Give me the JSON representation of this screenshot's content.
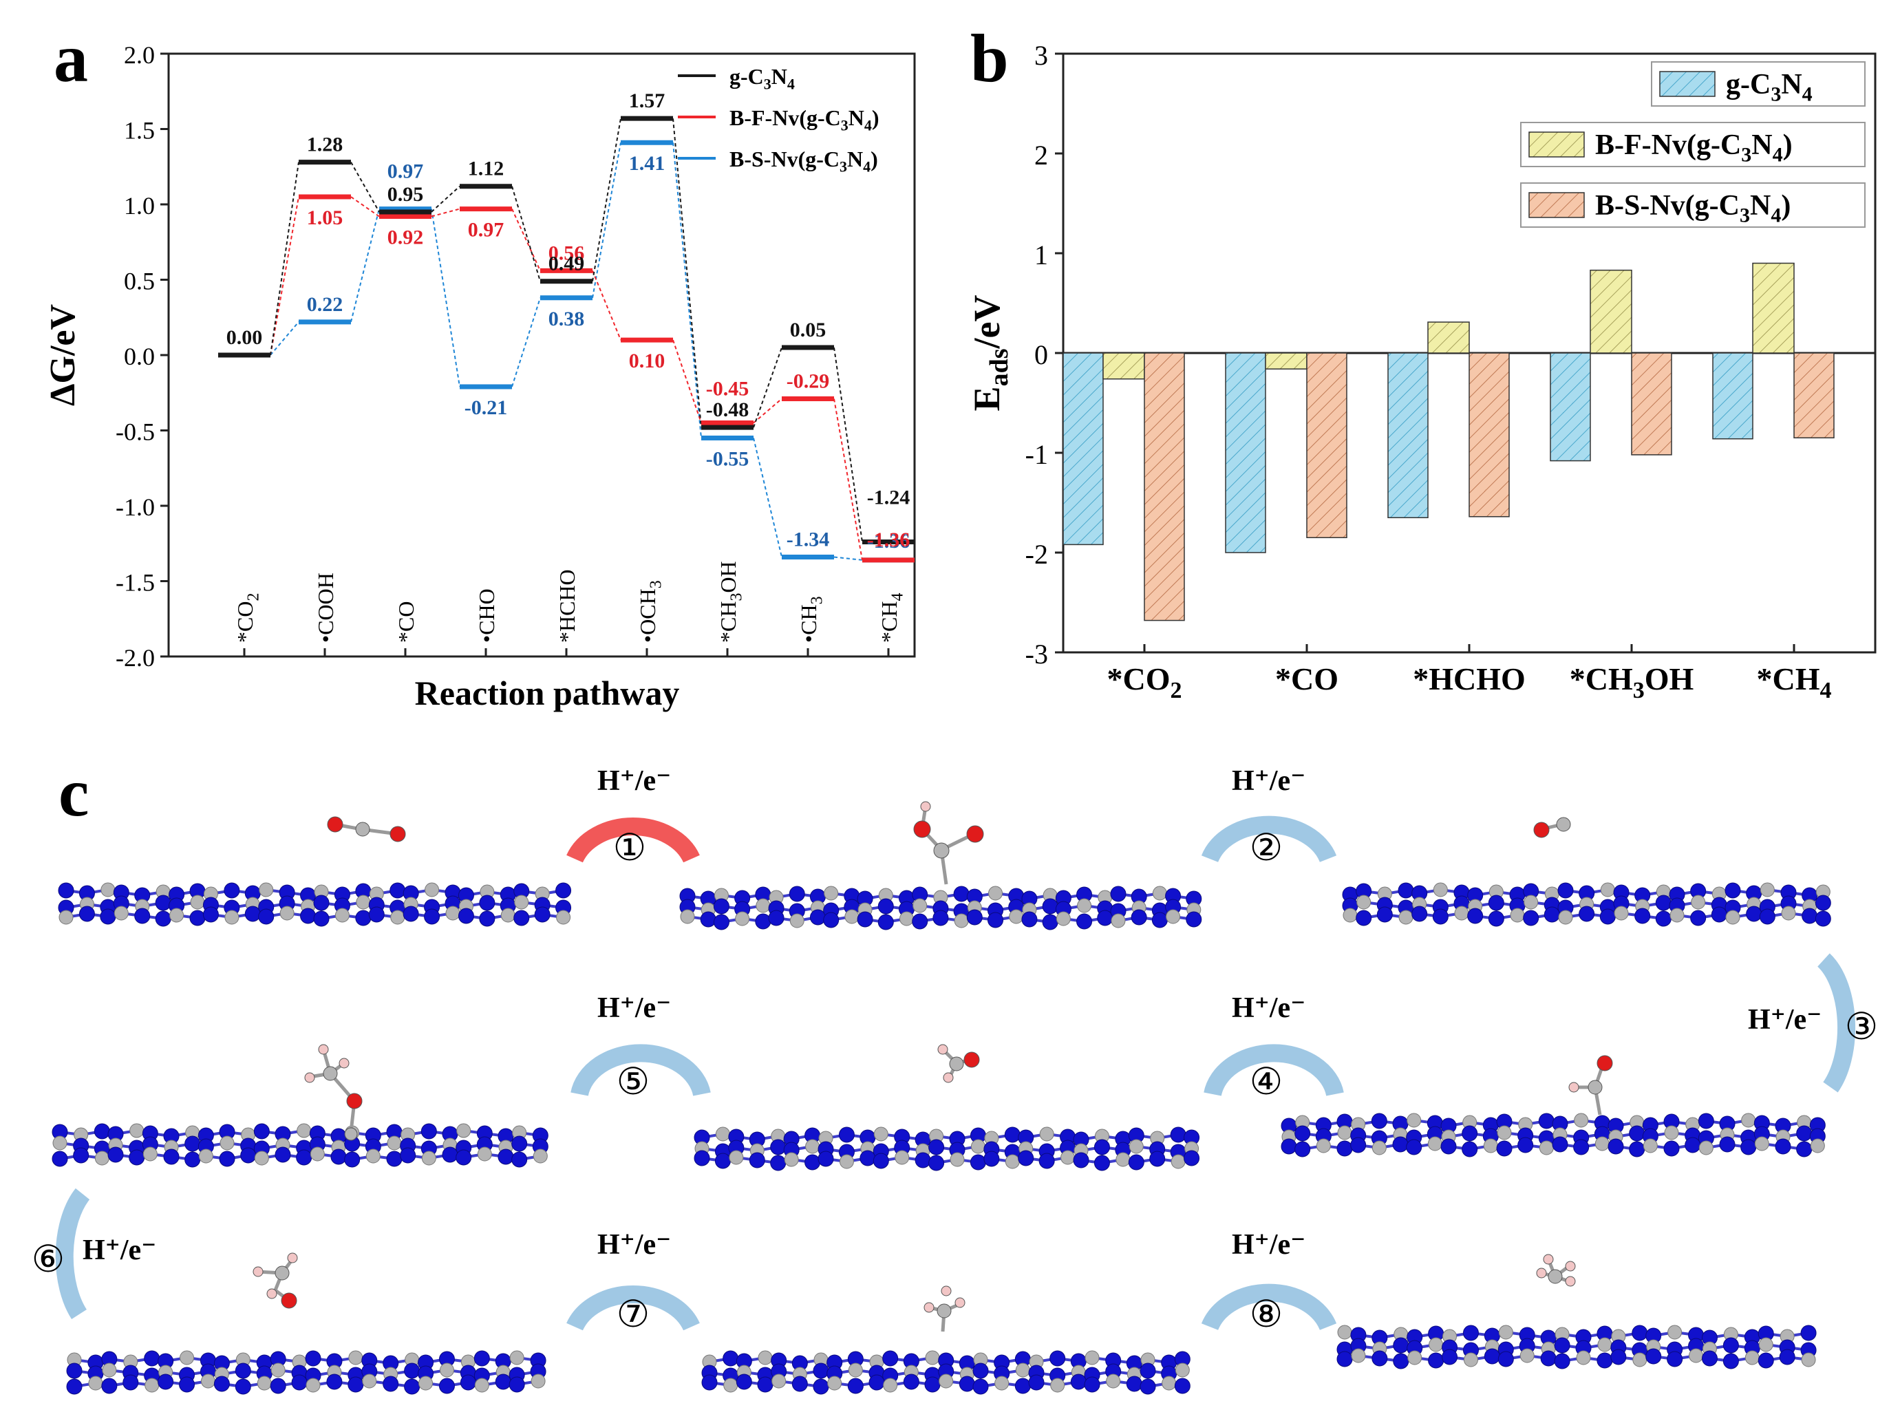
{
  "panel_labels": {
    "a": "a",
    "b": "b",
    "c": "c"
  },
  "chart_data": [
    {
      "panel": "a",
      "type": "line",
      "subtype": "free-energy-step-diagram",
      "ylabel": "ΔG/eV",
      "xlabel": "Reaction pathway",
      "ylim": [
        -2.0,
        2.0
      ],
      "yticks": [
        "-2.0",
        "-1.5",
        "-1.0",
        "-0.5",
        "0.0",
        "0.5",
        "1.0",
        "1.5",
        "2.0"
      ],
      "categories": [
        "*CO2",
        "•COOH",
        "*CO",
        "•CHO",
        "*HCHO",
        "•OCH3",
        "*CH3OH",
        "•CH3",
        "*CH4"
      ],
      "category_labels": [
        {
          "pre": "*CO",
          "sub": "2",
          "post": ""
        },
        {
          "pre": "•COOH",
          "sub": "",
          "post": ""
        },
        {
          "pre": "*CO",
          "sub": "",
          "post": ""
        },
        {
          "pre": "•CHO",
          "sub": "",
          "post": ""
        },
        {
          "pre": "*HCHO",
          "sub": "",
          "post": ""
        },
        {
          "pre": "•OCH",
          "sub": "3",
          "post": ""
        },
        {
          "pre": "*CH",
          "sub": "3",
          "post": "OH"
        },
        {
          "pre": "•CH",
          "sub": "3",
          "post": ""
        },
        {
          "pre": "*CH",
          "sub": "4",
          "post": ""
        }
      ],
      "series": [
        {
          "name": "g-C3N4",
          "legend": {
            "pre": "g-C",
            "s1": "3",
            "mid": "N",
            "s2": "4",
            "post": ""
          },
          "color": "#1a1a1a",
          "values": [
            0.0,
            1.28,
            0.95,
            1.12,
            0.49,
            1.57,
            -0.48,
            0.05,
            -1.24
          ],
          "labels": [
            "0.00",
            "1.28",
            "0.95",
            "1.12",
            "0.49",
            "1.57",
            "-0.48",
            "0.05",
            "-1.24"
          ]
        },
        {
          "name": "B-F-Nv(g-C3N4)",
          "legend": {
            "pre": "B-F-Nv(g-C",
            "s1": "3",
            "mid": "N",
            "s2": "4",
            "post": ")"
          },
          "color": "#f0262c",
          "values": [
            0.0,
            1.05,
            0.92,
            0.97,
            0.56,
            0.1,
            -0.45,
            -0.29,
            -1.36
          ],
          "labels": [
            "",
            "1.05",
            "0.92",
            "0.97",
            "0.56",
            "0.10",
            "-0.45",
            "-0.29",
            "-1.36"
          ]
        },
        {
          "name": "B-S-Nv(g-C3N4)",
          "legend": {
            "pre": "B-S-Nv(g-C",
            "s1": "3",
            "mid": "N",
            "s2": "4",
            "post": ")"
          },
          "color": "#1f86d6",
          "values": [
            0.0,
            0.22,
            0.97,
            -0.21,
            0.38,
            1.41,
            -0.55,
            -1.34,
            -1.36
          ],
          "labels": [
            "",
            "0.22",
            "0.97",
            "-0.21",
            "0.38",
            "1.41",
            "-0.55",
            "-1.34",
            "-1.36"
          ]
        }
      ]
    },
    {
      "panel": "b",
      "type": "bar",
      "ylabel": "E",
      "ylabel_sub": "ads",
      "ylabel_post": "/eV",
      "ylim": [
        -3,
        3
      ],
      "yticks": [
        "-3",
        "-2",
        "-1",
        "0",
        "1",
        "2",
        "3"
      ],
      "categories": [
        "*CO2",
        "*CO",
        "*HCHO",
        "*CH3OH",
        "*CH4"
      ],
      "category_labels": [
        {
          "pre": "*CO",
          "sub": "2",
          "post": ""
        },
        {
          "pre": "*CO",
          "sub": "",
          "post": ""
        },
        {
          "pre": "*HCHO",
          "sub": "",
          "post": ""
        },
        {
          "pre": "*CH",
          "sub": "3",
          "post": "OH"
        },
        {
          "pre": "*CH",
          "sub": "4",
          "post": ""
        }
      ],
      "series": [
        {
          "name": "g-C3N4",
          "legend": {
            "pre": "g-C",
            "s1": "3",
            "mid": "N",
            "s2": "4",
            "post": ""
          },
          "fill": "#a9dcef",
          "hatch": "#4aa8cc",
          "values": [
            -1.92,
            -2.0,
            -1.65,
            -1.08,
            -0.86
          ]
        },
        {
          "name": "B-F-Nv(g-C3N4)",
          "legend": {
            "pre": "B-F-Nv(g-C",
            "s1": "3",
            "mid": "N",
            "s2": "4",
            "post": ")"
          },
          "fill": "#f1efa8",
          "hatch": "#a8a25c",
          "values": [
            -0.26,
            -0.16,
            0.31,
            0.83,
            0.9
          ]
        },
        {
          "name": "B-S-Nv(g-C3N4)",
          "legend": {
            "pre": "B-S-Nv(g-C",
            "s1": "3",
            "mid": "N",
            "s2": "4",
            "post": ")"
          },
          "fill": "#f6c7aa",
          "hatch": "#c07a55",
          "values": [
            -2.68,
            -1.85,
            -1.64,
            -1.02,
            -0.85
          ]
        }
      ]
    }
  ],
  "panel_c": {
    "step_label": "H⁺/e⁻",
    "steps": [
      "①",
      "②",
      "③",
      "④",
      "⑤",
      "⑥",
      "⑦",
      "⑧"
    ],
    "arrow_colors": {
      "first": "#ee3b3b",
      "rest": "#8fbedf"
    },
    "atom_colors": {
      "N": "#1111cc",
      "C": "#b4b4b4",
      "O": "#e01b1b",
      "H": "#f2c6c6"
    }
  }
}
